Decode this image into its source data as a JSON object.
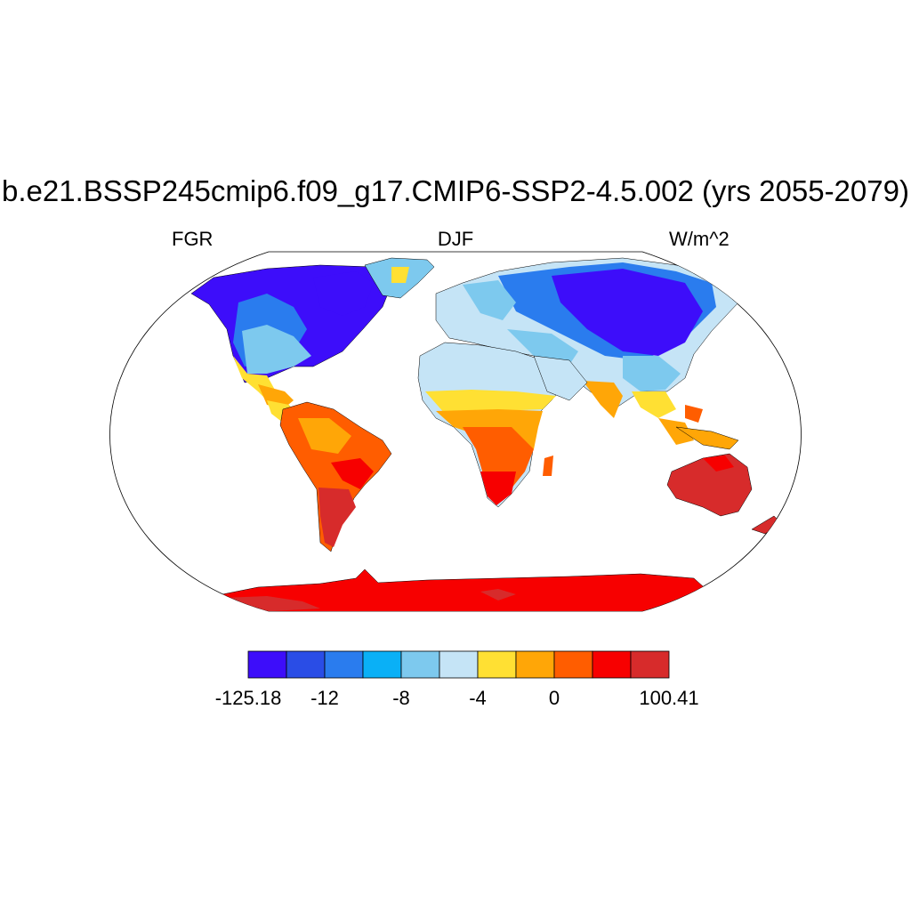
{
  "title": "b.e21.BSSP245cmip6.f09_g17.CMIP6-SSP2-4.5.002 (yrs 2055-2079)",
  "left_string": "FGR",
  "center_string": "DJF",
  "right_string": "W/m^2",
  "map": {
    "projection": "robinson",
    "variable": "FGR",
    "season": "DJF",
    "units": "W/m^2"
  },
  "colorbar": {
    "colors": [
      "#3d0dfa",
      "#2a4de6",
      "#2a7cee",
      "#0ab0f6",
      "#7dc9ee",
      "#c5e4f6",
      "#ffe033",
      "#ffa607",
      "#ff5d00",
      "#f70000",
      "#d72b2b"
    ],
    "tick_labels": [
      "-125.18",
      "-12",
      "-8",
      "-4",
      "0",
      "100.41"
    ],
    "tick_positions_boundary_index": [
      0,
      2,
      4,
      6,
      8,
      11
    ]
  }
}
